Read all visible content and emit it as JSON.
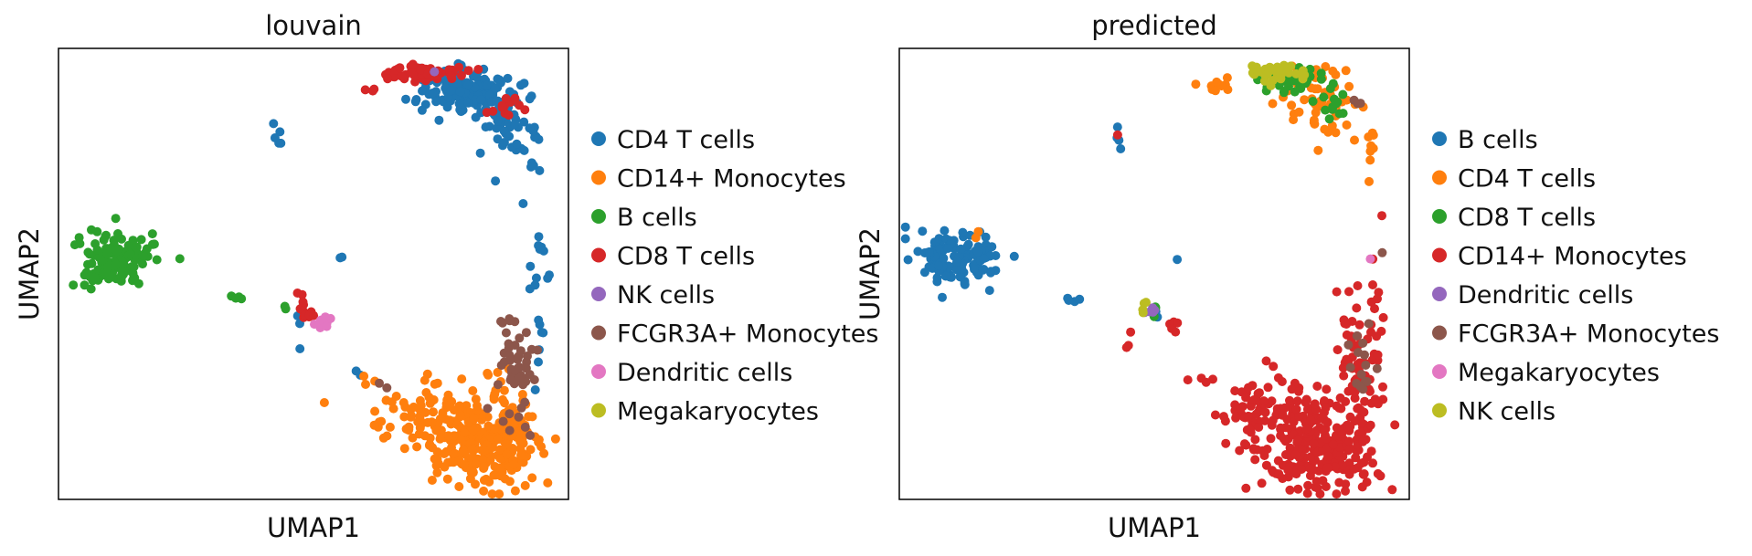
{
  "chart_data": [
    {
      "type": "scatter",
      "title": "louvain",
      "xlabel": "UMAP1",
      "ylabel": "UMAP2",
      "xlim": [
        0,
        10
      ],
      "ylim": [
        0,
        10
      ],
      "grid": false,
      "legend_position": "right",
      "series": [
        {
          "name": "CD4 T cells",
          "color": "#1f77b4",
          "clusters": [
            {
              "cx": 8.0,
              "cy": 9.1,
              "sx": 0.45,
              "sy": 0.25,
              "n": 140
            },
            {
              "cx": 8.7,
              "cy": 8.3,
              "sx": 0.22,
              "sy": 0.4,
              "n": 45
            },
            {
              "cx": 9.3,
              "cy": 7.7,
              "sx": 0.1,
              "sy": 0.4,
              "n": 12
            },
            {
              "cx": 9.45,
              "cy": 4.9,
              "sx": 0.12,
              "sy": 0.8,
              "n": 18
            },
            {
              "cx": 4.3,
              "cy": 8.0,
              "sx": 0.05,
              "sy": 0.2,
              "n": 5
            },
            {
              "cx": 5.55,
              "cy": 5.35,
              "sx": 0.05,
              "sy": 0.05,
              "n": 2
            },
            {
              "cx": 4.65,
              "cy": 3.6,
              "sx": 0.06,
              "sy": 0.25,
              "n": 3
            },
            {
              "cx": 5.85,
              "cy": 2.75,
              "sx": 0.05,
              "sy": 0.05,
              "n": 2
            }
          ]
        },
        {
          "name": "CD14+ Monocytes",
          "color": "#ff7f0e",
          "clusters": [
            {
              "cx": 8.25,
              "cy": 1.15,
              "sx": 0.55,
              "sy": 0.45,
              "n": 210
            },
            {
              "cx": 7.3,
              "cy": 1.9,
              "sx": 0.6,
              "sy": 0.35,
              "n": 90
            },
            {
              "cx": 8.85,
              "cy": 2.0,
              "sx": 0.2,
              "sy": 0.6,
              "n": 40
            },
            {
              "cx": 6.15,
              "cy": 2.65,
              "sx": 0.1,
              "sy": 0.07,
              "n": 3
            }
          ]
        },
        {
          "name": "B cells",
          "color": "#2ca02c",
          "clusters": [
            {
              "cx": 1.1,
              "cy": 5.35,
              "sx": 0.4,
              "sy": 0.3,
              "n": 130
            },
            {
              "cx": 3.4,
              "cy": 4.45,
              "sx": 0.08,
              "sy": 0.04,
              "n": 4
            },
            {
              "cx": 4.5,
              "cy": 4.2,
              "sx": 0.05,
              "sy": 0.05,
              "n": 2
            }
          ]
        },
        {
          "name": "CD8 T cells",
          "color": "#d62728",
          "clusters": [
            {
              "cx": 7.2,
              "cy": 9.45,
              "sx": 0.35,
              "sy": 0.1,
              "n": 55
            },
            {
              "cx": 8.8,
              "cy": 8.7,
              "sx": 0.15,
              "sy": 0.15,
              "n": 12
            },
            {
              "cx": 6.1,
              "cy": 9.1,
              "sx": 0.08,
              "sy": 0.05,
              "n": 3
            },
            {
              "cx": 4.85,
              "cy": 4.2,
              "sx": 0.12,
              "sy": 0.15,
              "n": 12
            }
          ]
        },
        {
          "name": "NK cells",
          "color": "#9467bd",
          "clusters": [
            {
              "cx": 7.35,
              "cy": 9.5,
              "sx": 0.05,
              "sy": 0.05,
              "n": 1
            }
          ]
        },
        {
          "name": "FCGR3A+ Monocytes",
          "color": "#8c564b",
          "clusters": [
            {
              "cx": 8.95,
              "cy": 2.8,
              "sx": 0.2,
              "sy": 0.7,
              "n": 55
            },
            {
              "cx": 6.35,
              "cy": 2.5,
              "sx": 0.06,
              "sy": 0.06,
              "n": 2
            }
          ]
        },
        {
          "name": "Dendritic cells",
          "color": "#e377c2",
          "clusters": [
            {
              "cx": 5.2,
              "cy": 3.95,
              "sx": 0.1,
              "sy": 0.08,
              "n": 10
            }
          ]
        },
        {
          "name": "Megakaryocytes",
          "color": "#bcbd22",
          "clusters": []
        }
      ]
    },
    {
      "type": "scatter",
      "title": "predicted",
      "xlabel": "UMAP1",
      "ylabel": "UMAP2",
      "xlim": [
        0,
        10
      ],
      "ylim": [
        0,
        10
      ],
      "grid": false,
      "legend_position": "right",
      "series": [
        {
          "name": "B cells",
          "color": "#1f77b4",
          "clusters": [
            {
              "cx": 1.1,
              "cy": 5.35,
              "sx": 0.4,
              "sy": 0.3,
              "n": 130
            },
            {
              "cx": 4.3,
              "cy": 7.9,
              "sx": 0.05,
              "sy": 0.2,
              "n": 4
            },
            {
              "cx": 3.4,
              "cy": 4.45,
              "sx": 0.08,
              "sy": 0.04,
              "n": 4
            },
            {
              "cx": 5.5,
              "cy": 5.35,
              "sx": 0.04,
              "sy": 0.04,
              "n": 1
            },
            {
              "cx": 5.05,
              "cy": 4.1,
              "sx": 0.08,
              "sy": 0.05,
              "n": 3
            }
          ]
        },
        {
          "name": "CD4 T cells",
          "color": "#ff7f0e",
          "clusters": [
            {
              "cx": 8.4,
              "cy": 8.8,
              "sx": 0.4,
              "sy": 0.4,
              "n": 60
            },
            {
              "cx": 6.2,
              "cy": 9.1,
              "sx": 0.25,
              "sy": 0.08,
              "n": 10
            },
            {
              "cx": 9.25,
              "cy": 7.7,
              "sx": 0.08,
              "sy": 0.3,
              "n": 8
            },
            {
              "cx": 1.5,
              "cy": 5.9,
              "sx": 0.05,
              "sy": 0.05,
              "n": 2
            }
          ]
        },
        {
          "name": "CD8 T cells",
          "color": "#2ca02c",
          "clusters": [
            {
              "cx": 7.8,
              "cy": 9.25,
              "sx": 0.35,
              "sy": 0.2,
              "n": 40
            },
            {
              "cx": 8.6,
              "cy": 8.75,
              "sx": 0.15,
              "sy": 0.15,
              "n": 10
            },
            {
              "cx": 4.95,
              "cy": 4.2,
              "sx": 0.06,
              "sy": 0.05,
              "n": 3
            }
          ]
        },
        {
          "name": "CD14+ Monocytes",
          "color": "#d62728",
          "clusters": [
            {
              "cx": 8.25,
              "cy": 1.15,
              "sx": 0.55,
              "sy": 0.45,
              "n": 230
            },
            {
              "cx": 7.3,
              "cy": 1.9,
              "sx": 0.6,
              "sy": 0.35,
              "n": 100
            },
            {
              "cx": 8.95,
              "cy": 2.8,
              "sx": 0.2,
              "sy": 0.8,
              "n": 80
            },
            {
              "cx": 9.3,
              "cy": 4.3,
              "sx": 0.08,
              "sy": 0.6,
              "n": 10
            },
            {
              "cx": 5.9,
              "cy": 2.7,
              "sx": 0.2,
              "sy": 0.05,
              "n": 4
            },
            {
              "cx": 4.5,
              "cy": 3.5,
              "sx": 0.04,
              "sy": 0.3,
              "n": 3
            },
            {
              "cx": 5.35,
              "cy": 3.85,
              "sx": 0.06,
              "sy": 0.08,
              "n": 5
            },
            {
              "cx": 4.3,
              "cy": 8.05,
              "sx": 0.04,
              "sy": 0.04,
              "n": 1
            },
            {
              "cx": 9.5,
              "cy": 6.25,
              "sx": 0.04,
              "sy": 0.04,
              "n": 1
            }
          ]
        },
        {
          "name": "Dendritic cells",
          "color": "#9467bd",
          "clusters": [
            {
              "cx": 4.95,
              "cy": 4.2,
              "sx": 0.1,
              "sy": 0.05,
              "n": 5
            }
          ]
        },
        {
          "name": "FCGR3A+ Monocytes",
          "color": "#8c564b",
          "clusters": [
            {
              "cx": 9.0,
              "cy": 3.1,
              "sx": 0.15,
              "sy": 0.6,
              "n": 15
            },
            {
              "cx": 9.0,
              "cy": 8.65,
              "sx": 0.1,
              "sy": 0.1,
              "n": 3
            },
            {
              "cx": 9.45,
              "cy": 5.5,
              "sx": 0.04,
              "sy": 0.04,
              "n": 1
            }
          ]
        },
        {
          "name": "Megakaryocytes",
          "color": "#e377c2",
          "clusters": [
            {
              "cx": 9.2,
              "cy": 5.35,
              "sx": 0.04,
              "sy": 0.04,
              "n": 1
            }
          ]
        },
        {
          "name": "NK cells",
          "color": "#bcbd22",
          "clusters": [
            {
              "cx": 7.45,
              "cy": 9.45,
              "sx": 0.3,
              "sy": 0.1,
              "n": 35
            },
            {
              "cx": 4.8,
              "cy": 4.35,
              "sx": 0.06,
              "sy": 0.1,
              "n": 4
            }
          ]
        }
      ]
    }
  ]
}
